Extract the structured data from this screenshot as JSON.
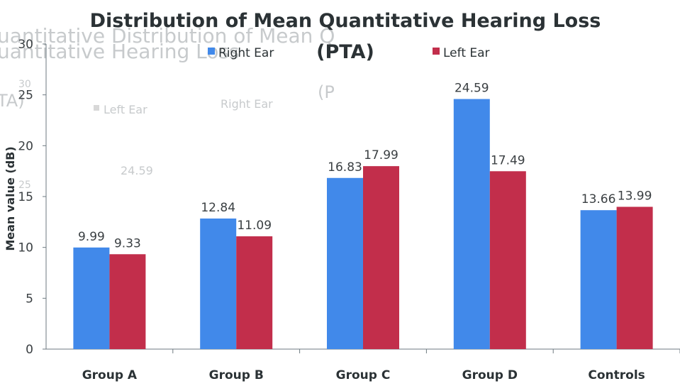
{
  "chart_data": {
    "type": "bar",
    "title": "Distribution of Mean Quantitative Hearing Loss (PTA)",
    "title_lines": [
      "Distribution of Mean Quantitative Hearing Loss",
      "(PTA)"
    ],
    "xlabel": "",
    "ylabel": "Mean value (dB)",
    "ylim": [
      0,
      30
    ],
    "yticks": [
      0,
      5,
      10,
      15,
      20,
      25,
      30
    ],
    "categories": [
      "Group A",
      "Group B",
      "Group C",
      "Group D",
      "Controls"
    ],
    "series": [
      {
        "name": "Right Ear",
        "color": "#4189ea",
        "values": [
          9.99,
          12.84,
          16.83,
          24.59,
          13.66
        ]
      },
      {
        "name": "Left Ear",
        "color": "#c22e4b",
        "values": [
          9.33,
          11.09,
          17.99,
          17.49,
          13.99
        ]
      }
    ],
    "data_labels": true,
    "legend": "top",
    "grid": false
  },
  "ghost": {
    "line1": "uantitative Distribution of Mean Q",
    "line2": "uantitative Hearing Loss",
    "frag_pta1": "(P",
    "frag_pta2": "TA)",
    "left_ear": "Left Ear",
    "right_ear": "Right Ear",
    "value": "24.59",
    "tick30": "30",
    "tick25": "25"
  }
}
